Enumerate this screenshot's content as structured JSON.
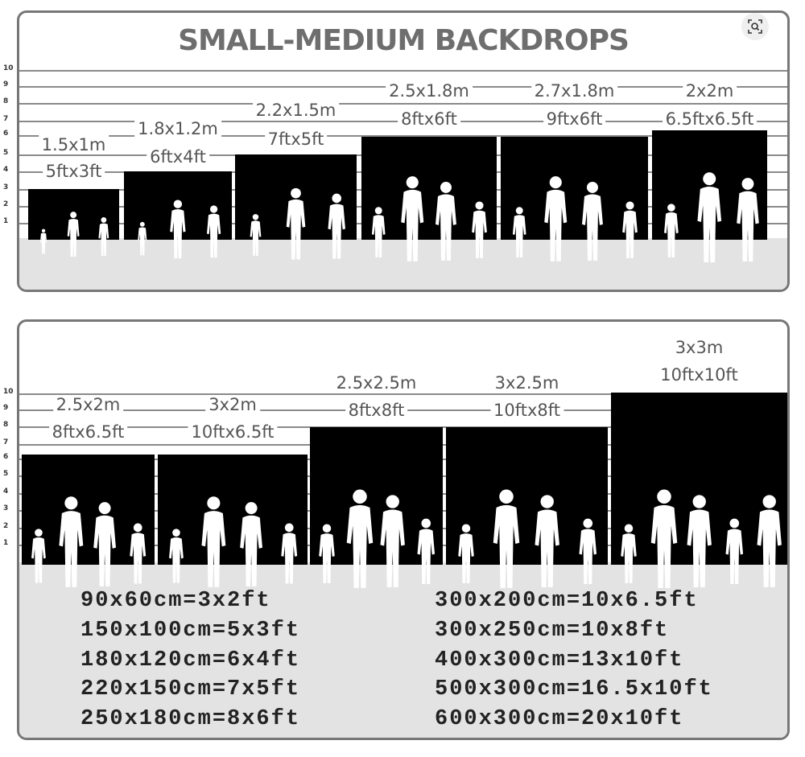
{
  "title": "SMALL-MEDIUM BACKDROPS",
  "scale_ticks": [
    "10",
    "9",
    "8",
    "7",
    "6",
    "5",
    "4",
    "3",
    "2",
    "1"
  ],
  "top_panel": {
    "sizes": [
      {
        "metric": "1.5x1m",
        "imperial": "5ftx3ft",
        "height_ft": 3
      },
      {
        "metric": "1.8x1.2m",
        "imperial": "6ftx4ft",
        "height_ft": 4
      },
      {
        "metric": "2.2x1.5m",
        "imperial": "7ftx5ft",
        "height_ft": 5
      },
      {
        "metric": "2.5x1.8m",
        "imperial": "8ftx6ft",
        "height_ft": 6
      },
      {
        "metric": "2.7x1.8m",
        "imperial": "9ftx6ft",
        "height_ft": 6
      },
      {
        "metric": "2x2m",
        "imperial": "6.5ftx6.5ft",
        "height_ft": 6.5
      }
    ]
  },
  "bottom_panel": {
    "sizes": [
      {
        "metric": "2.5x2m",
        "imperial": "8ftx6.5ft",
        "height_ft": 6.5
      },
      {
        "metric": "3x2m",
        "imperial": "10ftx6.5ft",
        "height_ft": 6.5
      },
      {
        "metric": "2.5x2.5m",
        "imperial": "8ftx8ft",
        "height_ft": 8
      },
      {
        "metric": "3x2.5m",
        "imperial": "10ftx8ft",
        "height_ft": 8
      },
      {
        "metric": "3x3m",
        "imperial": "10ftx10ft",
        "height_ft": 10
      }
    ],
    "conversions_left": [
      "90x60cm=3x2ft",
      "150x100cm=5x3ft",
      "180x120cm=6x4ft",
      "220x150cm=7x5ft",
      "250x180cm=8x6ft"
    ],
    "conversions_right": [
      "300x200cm=10x6.5ft",
      "300x250cm=10x8ft",
      "400x300cm=13x10ft",
      "500x300cm=16.5x10ft",
      "600x300cm=20x10ft"
    ]
  },
  "icons": {
    "zoom": "zoom-lens-icon"
  },
  "colors": {
    "backdrop": "#000000",
    "ground": "#e3e3e3",
    "title": "#6e6e6e",
    "border": "#777777"
  }
}
